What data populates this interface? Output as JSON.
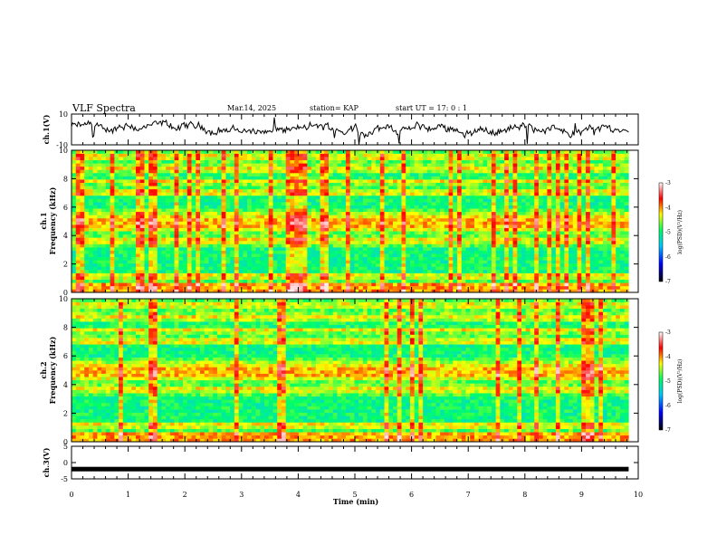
{
  "header": {
    "title": "VLF Spectra",
    "date": "Mar.14, 2025",
    "station": "station= KAP",
    "start_ut": "start  UT  =   17: 0  : 1"
  },
  "chart_data": [
    {
      "type": "line",
      "panel": "ch1-waveform",
      "ylabel": "ch.1(V)",
      "y_tick_labels": [
        "10",
        "-10"
      ],
      "ylim": [
        -10,
        10
      ],
      "xlim": [
        0,
        10
      ],
      "color": "#000000",
      "x_extent": [
        0,
        9.83
      ]
    },
    {
      "type": "heatmap",
      "panel": "ch1-spectrogram",
      "ylabel": "Frequency (kHz)",
      "channel_label": "ch.1",
      "y_tick_labels": [
        "0",
        "2",
        "4",
        "6",
        "8",
        "10"
      ],
      "ylim": [
        0,
        10
      ],
      "xlim": [
        0,
        10
      ],
      "x_extent": [
        0,
        9.83
      ],
      "colorbar": {
        "label": "log(PSD)(V²/Hz)",
        "tick_labels": [
          "-3",
          "-4",
          "-5",
          "-6",
          "-7"
        ],
        "range": [
          -7,
          -3
        ],
        "colors": [
          "#000000",
          "#0000ff",
          "#00c8ff",
          "#00ff64",
          "#ffff00",
          "#ff0000",
          "#ffffff"
        ]
      }
    },
    {
      "type": "heatmap",
      "panel": "ch2-spectrogram",
      "ylabel": "Frequency (kHz)",
      "channel_label": "ch.2",
      "y_tick_labels": [
        "0",
        "2",
        "4",
        "6",
        "8",
        "10"
      ],
      "ylim": [
        0,
        10
      ],
      "xlim": [
        0,
        10
      ],
      "x_extent": [
        0,
        9.83
      ],
      "colorbar": {
        "label": "log(PSD)(V²/Hz)",
        "tick_labels": [
          "-3",
          "-4",
          "-5",
          "-6",
          "-7"
        ],
        "range": [
          -7,
          -3
        ],
        "colors": [
          "#000000",
          "#0000ff",
          "#00c8ff",
          "#00ff64",
          "#ffff00",
          "#ff0000",
          "#ffffff"
        ]
      }
    },
    {
      "type": "line",
      "panel": "ch3-waveform",
      "ylabel": "ch.3(V)",
      "y_tick_labels": [
        "5",
        "0",
        "-5"
      ],
      "ylim": [
        -5,
        5
      ],
      "xlim": [
        0,
        10
      ],
      "level": -2,
      "color": "#000000",
      "x_extent": [
        0,
        9.83
      ]
    }
  ],
  "x_axis": {
    "label": "Time  (min)",
    "tick_labels": [
      "0",
      "1",
      "2",
      "3",
      "4",
      "5",
      "6",
      "7",
      "8",
      "9",
      "10"
    ]
  }
}
